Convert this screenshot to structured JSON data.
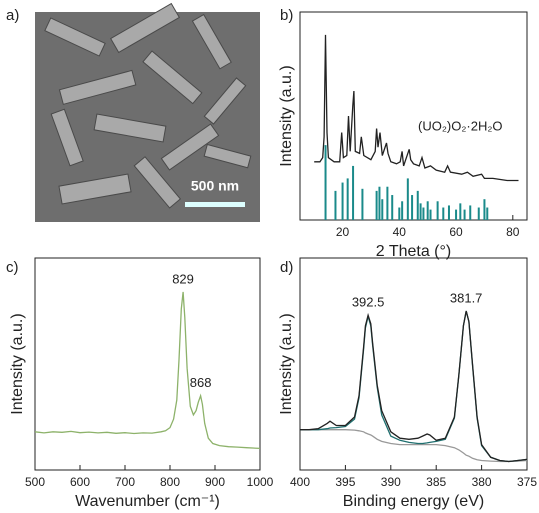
{
  "image_panel": {
    "label": "a)",
    "scale_bar_label": "500 nm"
  },
  "chart_data": [
    {
      "type": "line",
      "label": "b)",
      "xlabel": "2 Theta (°)",
      "ylabel": "Intensity (a.u.)",
      "xlim": [
        5,
        85
      ],
      "ylim": [
        0,
        100
      ],
      "xticks": [
        20,
        40,
        60,
        80
      ],
      "color": "#222222",
      "x": [
        10,
        12,
        13,
        13.5,
        14,
        14.5,
        15,
        17,
        19,
        19.7,
        20.3,
        21.5,
        22.1,
        22.7,
        23.6,
        24,
        24.5,
        26,
        26.6,
        27.5,
        30,
        31.5,
        32,
        32.5,
        33.2,
        34,
        35.5,
        36,
        37,
        39,
        40.3,
        41,
        41.5,
        43.5,
        44,
        45,
        47,
        48,
        49,
        51,
        53,
        56,
        57,
        58,
        62,
        64,
        66,
        69,
        70,
        73,
        78,
        82
      ],
      "values": [
        28,
        28,
        30,
        40,
        89,
        42,
        30,
        28,
        28,
        42,
        30,
        31,
        50,
        33,
        55,
        62,
        33,
        32,
        40,
        31,
        29,
        33,
        44,
        35,
        42,
        31,
        37,
        32,
        28,
        27,
        28,
        33,
        26,
        34,
        29,
        27,
        26,
        30,
        25,
        26,
        24,
        23,
        26,
        23,
        22,
        23,
        21,
        22,
        20,
        20,
        19,
        19
      ],
      "reference": {
        "color": "#1a8a8a",
        "x": [
          14,
          17.5,
          20,
          21.8,
          23.7,
          27,
          32,
          33,
          34,
          35.8,
          37.5,
          40,
          41,
          43,
          44.5,
          46.5,
          47.5,
          48.5,
          50,
          51,
          53.5,
          55.5,
          57.5,
          60,
          61.5,
          63,
          65,
          68,
          70,
          71
        ],
        "values": [
          36,
          14,
          18,
          20,
          26,
          15,
          14,
          16,
          10,
          16,
          12,
          6,
          9,
          20,
          12,
          14,
          8,
          6,
          9,
          5,
          9,
          6,
          7,
          5,
          8,
          5,
          7,
          6,
          10,
          6
        ]
      },
      "annotation": "(UO₂)O₂·2H₂O"
    },
    {
      "type": "line",
      "label": "c)",
      "xlabel": "Wavenumber (cm⁻¹)",
      "ylabel": "Intensity (a.u.)",
      "xlim": [
        500,
        1000
      ],
      "ylim": [
        0,
        100
      ],
      "xticks": [
        500,
        600,
        700,
        800,
        900,
        1000
      ],
      "color": "#8db26a",
      "x": [
        500,
        520,
        540,
        560,
        580,
        600,
        620,
        640,
        660,
        680,
        700,
        720,
        740,
        760,
        780,
        790,
        800,
        808,
        815,
        820,
        825,
        829,
        833,
        838,
        845,
        852,
        858,
        863,
        868,
        872,
        877,
        885,
        895,
        910,
        930,
        950,
        970,
        1000
      ],
      "values": [
        18,
        17.5,
        18,
        17.8,
        18.2,
        17.6,
        17.9,
        17.5,
        17.8,
        17.3,
        17.6,
        17.2,
        17.5,
        17.4,
        18,
        18.5,
        20,
        24,
        33,
        52,
        76,
        84,
        72,
        48,
        30,
        26,
        28,
        32,
        35,
        31,
        22,
        15,
        12.5,
        11.5,
        11,
        10.8,
        10.5,
        10.2
      ],
      "peak_labels": [
        829,
        868
      ]
    },
    {
      "type": "line",
      "label": "d)",
      "xlabel": "Binding energy (eV)",
      "ylabel": "Intensity (a.u.)",
      "xlim": [
        400,
        375
      ],
      "ylim": [
        0,
        100
      ],
      "xticks": [
        400,
        395,
        390,
        385,
        380,
        375
      ],
      "x": [
        400,
        399,
        398,
        397,
        396.7,
        396,
        395,
        394,
        393.5,
        393,
        392.8,
        392.5,
        392.2,
        392,
        391.5,
        391,
        390,
        389,
        388,
        387,
        386.5,
        386,
        385.7,
        385,
        384,
        383,
        382.5,
        382,
        381.7,
        381.4,
        381,
        380.5,
        380,
        379,
        378,
        377,
        376,
        375
      ],
      "series": [
        {
          "color": "#222222",
          "values": [
            19,
            19,
            19.5,
            22,
            23,
            21,
            21,
            25,
            35,
            58,
            68,
            73,
            69,
            60,
            40,
            28,
            18,
            15,
            14.5,
            15,
            16,
            17,
            16.5,
            14,
            15,
            25,
            45,
            68,
            75,
            70,
            50,
            25,
            12,
            6,
            4.5,
            4,
            4.5,
            5
          ]
        },
        {
          "color": "#1f6f6f",
          "values": [
            19,
            19,
            19,
            19.5,
            19.8,
            20,
            20.5,
            24,
            34,
            57,
            67,
            72.5,
            68,
            59,
            39,
            26,
            16,
            14,
            13,
            12.5,
            12.5,
            12.8,
            13,
            13.5,
            14.5,
            24.5,
            45,
            68,
            75,
            70,
            49.5,
            24.5,
            11.5,
            6,
            4.5,
            4,
            4.5,
            5
          ]
        },
        {
          "color": "#999999",
          "values": [
            19,
            19,
            19,
            19,
            19,
            19,
            19,
            18.8,
            18.5,
            18,
            17.5,
            17,
            16.5,
            16,
            14.5,
            13.5,
            12.5,
            12,
            12,
            12,
            12,
            12,
            12,
            12,
            11.5,
            10.5,
            9.5,
            8,
            7,
            6.5,
            5.5,
            4.8,
            4.5,
            4.2,
            4,
            4,
            4.2,
            4.5
          ]
        }
      ],
      "peak_labels": [
        392.5,
        381.7
      ]
    }
  ]
}
